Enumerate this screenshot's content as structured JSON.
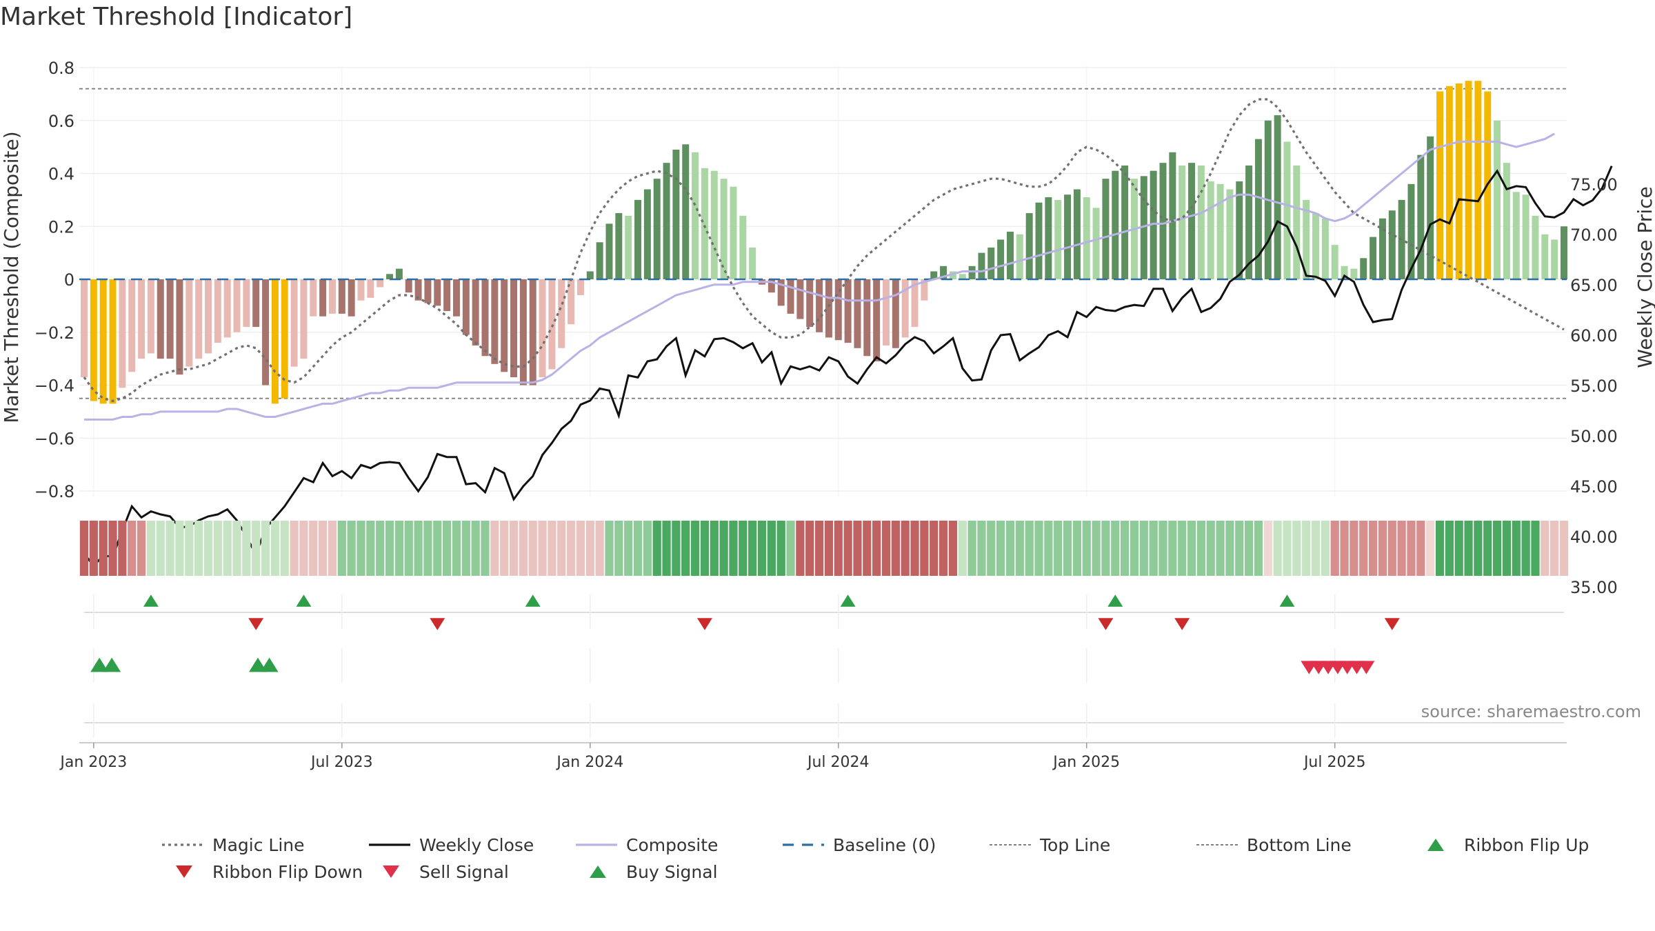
{
  "title": "Market Threshold [Indicator]",
  "source_note": "source: sharemaestro.com",
  "colors": {
    "bar_orange": "#F5B800",
    "bar_dark_green": "#5E8F5E",
    "bar_light_green": "#A9D6A3",
    "bar_dark_red": "#A6736D",
    "bar_light_red": "#E8B9B3",
    "close": "#111111",
    "composite": "#B8B2E6",
    "magic": "#707070",
    "baseline": "#2E6DA4",
    "flip_up": "#2E9E48",
    "flip_down": "#CC2A2A",
    "sell": "#E0304A",
    "buy": "#2E9E48"
  },
  "chart_data": {
    "type": "bar",
    "ylabel_left": "Market Threshold (Composite)",
    "ylabel_right": "Weekly Close Price",
    "left_ticks": [
      "0.8",
      "0.6",
      "0.4",
      "0.2",
      "0",
      "−0.2",
      "−0.4",
      "−0.6",
      "−0.8"
    ],
    "right_ticks": [
      "75.00",
      "70.00",
      "65.00",
      "60.00",
      "55.00",
      "50.00",
      "45.00",
      "40.00",
      "35.00"
    ],
    "ylim_left": [
      -0.8,
      0.8
    ],
    "ylim_right": [
      35,
      77
    ],
    "x_ticks": [
      "Jan 2023",
      "Jul 2023",
      "Jan 2024",
      "Jul 2024",
      "Jan 2025",
      "Jul 2025"
    ],
    "x_tick_weeks": [
      1,
      27,
      53,
      79,
      105,
      131
    ],
    "top_line": 0.72,
    "bottom_line": -0.45,
    "weeks": 143,
    "threshold_bars": [
      -0.37,
      -0.46,
      -0.47,
      -0.47,
      -0.41,
      -0.35,
      -0.3,
      -0.28,
      -0.3,
      -0.3,
      -0.36,
      -0.33,
      -0.3,
      -0.28,
      -0.24,
      -0.22,
      -0.2,
      -0.18,
      -0.18,
      -0.4,
      -0.47,
      -0.45,
      -0.33,
      -0.3,
      -0.14,
      -0.14,
      -0.13,
      -0.13,
      -0.14,
      -0.08,
      -0.07,
      -0.03,
      0.02,
      0.04,
      -0.05,
      -0.08,
      -0.09,
      -0.1,
      -0.12,
      -0.14,
      -0.21,
      -0.25,
      -0.29,
      -0.32,
      -0.35,
      -0.37,
      -0.4,
      -0.4,
      -0.37,
      -0.34,
      -0.26,
      -0.17,
      -0.06,
      0.03,
      0.14,
      0.21,
      0.25,
      0.24,
      0.3,
      0.34,
      0.38,
      0.44,
      0.49,
      0.51,
      0.48,
      0.42,
      0.41,
      0.38,
      0.35,
      0.24,
      0.12,
      -0.02,
      -0.05,
      -0.1,
      -0.13,
      -0.15,
      -0.18,
      -0.2,
      -0.22,
      -0.23,
      -0.24,
      -0.26,
      -0.29,
      -0.31,
      -0.25,
      -0.26,
      -0.22,
      -0.18,
      -0.08,
      0.03,
      0.05,
      0.03,
      0.02,
      0.05,
      0.1,
      0.12,
      0.15,
      0.18,
      0.17,
      0.25,
      0.29,
      0.31,
      0.3,
      0.32,
      0.34,
      0.31,
      0.27,
      0.38,
      0.41,
      0.43,
      0.38,
      0.39,
      0.41,
      0.44,
      0.48,
      0.43,
      0.44,
      0.43,
      0.37,
      0.36,
      0.34,
      0.37,
      0.43,
      0.53,
      0.6,
      0.62,
      0.52,
      0.43,
      0.3,
      0.25,
      0.23,
      0.13,
      0.05,
      0.04,
      0.08,
      0.16,
      0.23,
      0.26,
      0.3,
      0.36,
      0.47,
      0.54,
      0.71,
      0.73
    ],
    "threshold_bars_tail": [
      0.74,
      0.75,
      0.75,
      0.71,
      0.6,
      0.44,
      0.33,
      0.32,
      0.24,
      0.17,
      0.15,
      0.2
    ],
    "weekly_close": [
      38.3,
      37.1,
      38.1,
      38.0,
      40.6,
      43.0,
      41.9,
      42.5,
      42.2,
      42.0,
      40.9,
      41.0,
      41.6,
      42.0,
      42.2,
      42.7,
      41.6,
      40.0,
      38.2,
      40.8,
      41.9,
      43.0,
      44.4,
      45.8,
      45.4,
      47.3,
      46.0,
      46.5,
      45.8,
      47.1,
      46.8,
      47.3,
      47.4,
      47.3,
      45.8,
      44.5,
      45.9,
      48.2,
      47.9,
      47.9,
      45.2,
      45.3,
      44.4,
      46.8,
      46.3,
      43.7,
      45.0,
      46.0,
      48.1,
      49.3,
      50.7,
      51.5,
      53.1,
      53.5,
      54.7,
      54.5,
      52.0,
      56.0,
      55.8,
      57.4,
      57.6,
      58.9,
      59.7,
      56.0,
      58.5,
      57.9,
      59.6,
      59.7,
      59.3,
      58.7,
      59.2,
      57.3,
      58.3,
      55.2,
      56.9,
      56.6,
      56.9,
      56.5,
      57.8,
      57.4,
      55.9,
      55.2,
      56.6,
      57.8,
      57.2,
      58.0,
      59.1,
      59.8,
      59.4,
      58.2,
      58.9,
      59.7,
      56.7,
      55.5,
      55.6,
      58.5,
      60.0,
      60.1,
      57.5,
      58.2,
      58.8,
      60.0,
      60.4,
      59.8,
      62.3,
      61.8,
      62.8,
      62.5,
      62.4,
      62.8,
      63.0,
      62.9,
      64.6,
      64.6,
      62.4,
      63.7,
      64.6,
      62.3,
      62.7,
      63.6,
      65.3,
      66.0,
      67.1,
      67.9,
      69.3,
      71.3,
      70.8,
      68.8,
      65.9,
      65.8,
      65.4,
      63.9,
      65.9,
      65.3,
      63.0,
      61.3,
      61.5,
      61.6,
      64.5,
      66.6,
      68.5,
      71.0,
      71.5
    ],
    "weekly_close_tail": [
      71.1,
      73.5,
      73.4,
      73.3,
      75.0,
      76.3,
      74.5,
      74.8,
      74.7,
      73.1,
      71.8,
      71.7,
      72.2,
      73.5,
      72.9,
      73.4,
      74.6,
      76.8
    ],
    "composite_line": [
      -0.53,
      -0.53,
      -0.53,
      -0.53,
      -0.52,
      -0.52,
      -0.51,
      -0.51,
      -0.5,
      -0.5,
      -0.5,
      -0.5,
      -0.5,
      -0.5,
      -0.5,
      -0.49,
      -0.49,
      -0.5,
      -0.51,
      -0.52,
      -0.52,
      -0.51,
      -0.5,
      -0.49,
      -0.48,
      -0.47,
      -0.47,
      -0.46,
      -0.45,
      -0.44,
      -0.43,
      -0.43,
      -0.42,
      -0.42,
      -0.41,
      -0.41,
      -0.41,
      -0.41,
      -0.4,
      -0.39,
      -0.39,
      -0.39,
      -0.39,
      -0.39,
      -0.39,
      -0.39,
      -0.39,
      -0.39,
      -0.38,
      -0.36,
      -0.33,
      -0.3,
      -0.27,
      -0.25,
      -0.22,
      -0.2,
      -0.18,
      -0.16,
      -0.14,
      -0.12,
      -0.1,
      -0.08,
      -0.06,
      -0.05,
      -0.04,
      -0.03,
      -0.02,
      -0.02,
      -0.02,
      -0.01,
      -0.01,
      -0.01,
      -0.01,
      -0.02,
      -0.03,
      -0.04,
      -0.05,
      -0.06,
      -0.07,
      -0.07,
      -0.08,
      -0.08,
      -0.08,
      -0.08,
      -0.07,
      -0.06,
      -0.04,
      -0.02,
      -0.01,
      0.0,
      0.01,
      0.02,
      0.03,
      0.03,
      0.03,
      0.04,
      0.05,
      0.06,
      0.07,
      0.08,
      0.09,
      0.1,
      0.11,
      0.12,
      0.13,
      0.14,
      0.15,
      0.16,
      0.17,
      0.18,
      0.19,
      0.2,
      0.21,
      0.21,
      0.22,
      0.23,
      0.24,
      0.25,
      0.27,
      0.29,
      0.31,
      0.32,
      0.32,
      0.31,
      0.3,
      0.29,
      0.28,
      0.27,
      0.26,
      0.25,
      0.23,
      0.22,
      0.23,
      0.25,
      0.28,
      0.31,
      0.34,
      0.37,
      0.4,
      0.43,
      0.46,
      0.49,
      0.5
    ],
    "composite_tail": [
      0.51,
      0.52,
      0.52,
      0.52,
      0.52,
      0.52,
      0.51,
      0.5,
      0.51,
      0.52,
      0.53,
      0.55
    ],
    "magic_line": [
      -0.37,
      -0.42,
      -0.45,
      -0.46,
      -0.45,
      -0.43,
      -0.4,
      -0.38,
      -0.36,
      -0.35,
      -0.34,
      -0.34,
      -0.33,
      -0.32,
      -0.3,
      -0.28,
      -0.26,
      -0.25,
      -0.26,
      -0.3,
      -0.35,
      -0.38,
      -0.39,
      -0.37,
      -0.33,
      -0.29,
      -0.25,
      -0.22,
      -0.2,
      -0.17,
      -0.14,
      -0.11,
      -0.08,
      -0.06,
      -0.06,
      -0.07,
      -0.09,
      -0.11,
      -0.14,
      -0.17,
      -0.21,
      -0.24,
      -0.27,
      -0.3,
      -0.32,
      -0.33,
      -0.33,
      -0.3,
      -0.25,
      -0.18,
      -0.1,
      0.0,
      0.1,
      0.18,
      0.25,
      0.3,
      0.34,
      0.37,
      0.39,
      0.4,
      0.41,
      0.4,
      0.38,
      0.34,
      0.28,
      0.2,
      0.12,
      0.04,
      -0.03,
      -0.09,
      -0.14,
      -0.17,
      -0.2,
      -0.22,
      -0.22,
      -0.21,
      -0.18,
      -0.15,
      -0.1,
      -0.05,
      0.0,
      0.05,
      0.09,
      0.12,
      0.15,
      0.18,
      0.21,
      0.24,
      0.27,
      0.3,
      0.32,
      0.34,
      0.35,
      0.36,
      0.37,
      0.38,
      0.38,
      0.37,
      0.36,
      0.35,
      0.35,
      0.36,
      0.39,
      0.43,
      0.48,
      0.5,
      0.49,
      0.47,
      0.44,
      0.4,
      0.35,
      0.3,
      0.26,
      0.23,
      0.22,
      0.23,
      0.27,
      0.33,
      0.4,
      0.48,
      0.56,
      0.62,
      0.66,
      0.68,
      0.68,
      0.65,
      0.6,
      0.54,
      0.48,
      0.43,
      0.38,
      0.33,
      0.29,
      0.25
    ]
  },
  "ribbon": {
    "levels": [
      -3,
      -3,
      -3,
      -3,
      -3,
      -2,
      -2,
      1,
      1,
      1,
      1,
      1,
      1,
      1,
      1,
      1,
      1,
      1,
      1,
      1,
      1,
      1,
      -1,
      -1,
      -1,
      -1,
      -1,
      2,
      2,
      2,
      2,
      2,
      2,
      2,
      2,
      2,
      2,
      2,
      2,
      2,
      2,
      2,
      2,
      -1,
      -1,
      -1,
      -1,
      -1,
      -1,
      -1,
      -1,
      -1,
      -1,
      -1,
      -1,
      2,
      2,
      2,
      2,
      2,
      3,
      3,
      3,
      3,
      3,
      3,
      3,
      3,
      3,
      3,
      3,
      3,
      3,
      3,
      2,
      -3,
      -3,
      -3,
      -3,
      -3,
      -3,
      -3,
      -3,
      -3,
      -3,
      -3,
      -3,
      -3,
      -3,
      -3,
      -3,
      -3,
      1,
      2,
      2,
      2,
      2,
      2,
      2,
      2,
      2,
      2,
      2,
      2,
      2,
      2,
      2,
      2,
      2,
      2,
      2,
      2,
      2,
      2,
      2,
      2,
      2,
      2,
      2,
      2,
      2,
      2,
      2,
      2,
      0,
      1,
      1,
      1,
      1,
      1,
      1,
      -2,
      -2,
      -2,
      -2,
      -2,
      -2,
      -2,
      -2,
      -2,
      -2,
      0,
      3,
      3,
      3,
      3,
      3,
      3,
      3,
      3,
      3,
      3,
      3,
      -1,
      -1,
      -1,
      -1,
      -1,
      -2
    ]
  },
  "signals": {
    "ribbon_flip_up_weeks": [
      7,
      23,
      47,
      80,
      108,
      126
    ],
    "ribbon_flip_down_weeks": [
      18,
      37,
      65,
      107,
      115,
      137
    ],
    "buy_weeks": [
      1.6,
      2.9,
      18.2,
      19.4
    ],
    "sell_weeks": [
      128.3,
      129.3,
      130.3,
      131.3,
      132.3,
      133.3,
      134.3
    ]
  },
  "legend": [
    {
      "label": "Magic Line",
      "kind": "dotted",
      "color": "#707070"
    },
    {
      "label": "Weekly Close",
      "kind": "solid",
      "color": "#111111"
    },
    {
      "label": "Composite",
      "kind": "solid",
      "color": "#B8B2E6"
    },
    {
      "label": "Baseline (0)",
      "kind": "dashed",
      "color": "#2E6DA4"
    },
    {
      "label": "Top Line",
      "kind": "dotted-thin",
      "color": "#808080"
    },
    {
      "label": "Bottom Line",
      "kind": "dotted-thin",
      "color": "#808080"
    },
    {
      "label": "Ribbon Flip Up",
      "kind": "tri-up",
      "color": "#2E9E48"
    },
    {
      "label": "Ribbon Flip Down",
      "kind": "tri-down",
      "color": "#CC2A2A"
    },
    {
      "label": "Sell Signal",
      "kind": "tri-down",
      "color": "#E0304A"
    },
    {
      "label": "Buy Signal",
      "kind": "tri-up",
      "color": "#2E9E48"
    }
  ]
}
